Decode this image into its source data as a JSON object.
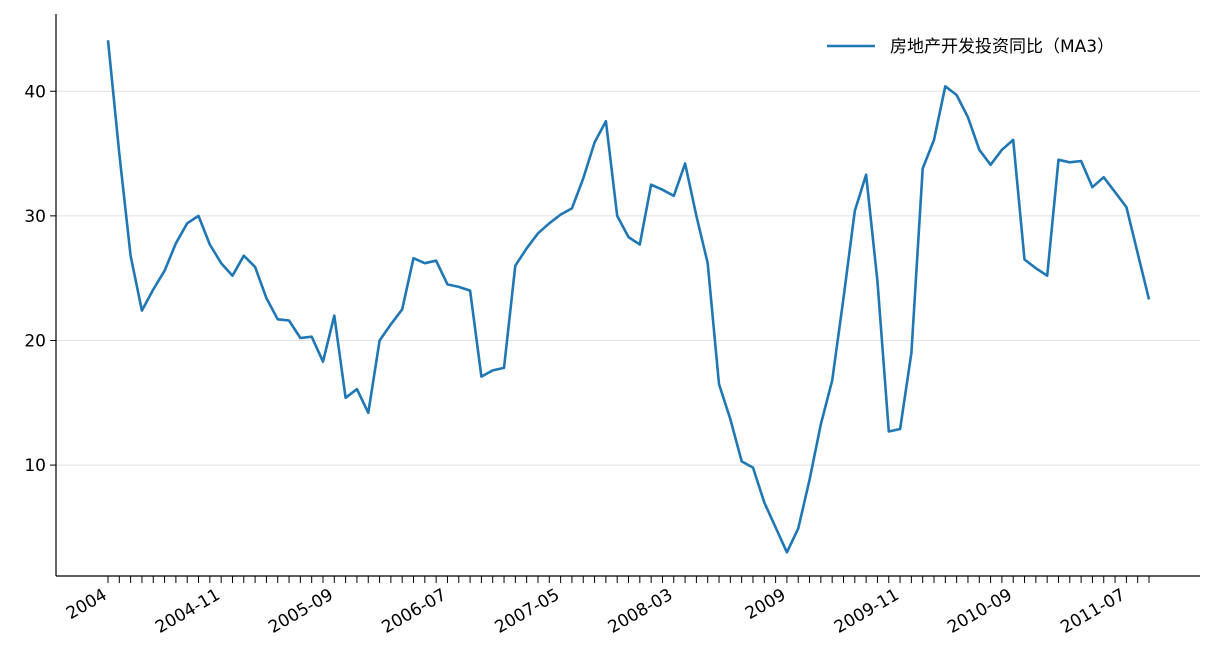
{
  "chart_data": {
    "type": "line",
    "categories": [
      "2004",
      null,
      null,
      null,
      null,
      null,
      null,
      null,
      null,
      null,
      "2004-11",
      null,
      null,
      null,
      null,
      null,
      null,
      null,
      null,
      null,
      "2005-09",
      null,
      null,
      null,
      null,
      null,
      null,
      null,
      null,
      null,
      "2006-07",
      null,
      null,
      null,
      null,
      null,
      null,
      null,
      null,
      null,
      "2007-05",
      null,
      null,
      null,
      null,
      null,
      null,
      null,
      null,
      null,
      "2008-03",
      null,
      null,
      null,
      null,
      null,
      null,
      null,
      null,
      null,
      "2009",
      null,
      null,
      null,
      null,
      null,
      null,
      null,
      null,
      null,
      "2009-11",
      null,
      null,
      null,
      null,
      null,
      null,
      null,
      null,
      null,
      "2010-09",
      null,
      null,
      null,
      null,
      null,
      null,
      null,
      null,
      null,
      "2011-07",
      null,
      null
    ],
    "series": [
      {
        "name": "房地产开发投资同比（MA3）",
        "color": "#1f77b4",
        "values": [
          44.1,
          35,
          26.8,
          22.4,
          24.1,
          25.6,
          27.8,
          29.4,
          30.0,
          27.7,
          26.2,
          25.2,
          26.8,
          25.9,
          23.4,
          21.7,
          21.6,
          20.2,
          20.3,
          18.3,
          22.0,
          15.4,
          16.1,
          14.2,
          20.0,
          21.3,
          22.5,
          26.6,
          26.2,
          26.4,
          24.5,
          24.3,
          24.0,
          17.1,
          17.6,
          17.8,
          26.0,
          27.4,
          28.6,
          29.4,
          30.1,
          30.6,
          33.0,
          35.9,
          37.6,
          30.0,
          28.3,
          27.7,
          32.5,
          32.1,
          31.6,
          34.2,
          30.0,
          26.2,
          16.5,
          13.7,
          10.3,
          9.8,
          7.0,
          5.0,
          3.0,
          4.9,
          8.8,
          13.3,
          16.8,
          23.4,
          30.4,
          33.3,
          24.8,
          12.7,
          12.9,
          19.0,
          33.8,
          36.1,
          40.4,
          39.7,
          37.9,
          35.3,
          34.1,
          35.3,
          36.1,
          26.5,
          25.8,
          25.2,
          34.5,
          34.3,
          34.4,
          32.3,
          33.1,
          31.9,
          30.7,
          27.0,
          23.3
        ]
      }
    ],
    "ylim": [
      1.1,
      46.2
    ],
    "yticks": [
      10,
      20,
      30,
      40
    ],
    "grid": true,
    "legend": "upper right"
  }
}
